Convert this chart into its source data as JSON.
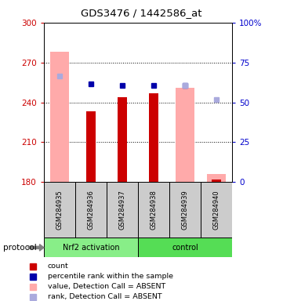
{
  "title": "GDS3476 / 1442586_at",
  "samples": [
    "GSM284935",
    "GSM284936",
    "GSM284937",
    "GSM284938",
    "GSM284939",
    "GSM284940"
  ],
  "ylim_left": [
    180,
    300
  ],
  "ylim_right": [
    0,
    100
  ],
  "yticks_left": [
    180,
    210,
    240,
    270,
    300
  ],
  "yticks_right": [
    0,
    25,
    50,
    75,
    100
  ],
  "ytick_labels_right": [
    "0",
    "25",
    "50",
    "75",
    "100%"
  ],
  "red_bars": [
    null,
    233,
    244,
    247,
    null,
    182
  ],
  "pink_bars": [
    278,
    null,
    null,
    null,
    251,
    186
  ],
  "blue_squares": [
    null,
    254,
    253,
    253,
    253,
    null
  ],
  "lightblue_squares": [
    260,
    null,
    null,
    null,
    253,
    242
  ],
  "colors": {
    "red": "#cc0000",
    "pink": "#ffaaaa",
    "blue": "#0000aa",
    "lightblue": "#aaaadd",
    "sample_bg": "#cccccc",
    "left_axis": "#cc0000",
    "right_axis": "#0000cc"
  },
  "group1_label": "Nrf2 activation",
  "group2_label": "control",
  "group1_color": "#88ee88",
  "group2_color": "#55dd55",
  "protocol_label": "protocol",
  "legend_items": [
    {
      "label": "count",
      "color": "#cc0000"
    },
    {
      "label": "percentile rank within the sample",
      "color": "#0000aa"
    },
    {
      "label": "value, Detection Call = ABSENT",
      "color": "#ffaaaa"
    },
    {
      "label": "rank, Detection Call = ABSENT",
      "color": "#aaaadd"
    }
  ]
}
